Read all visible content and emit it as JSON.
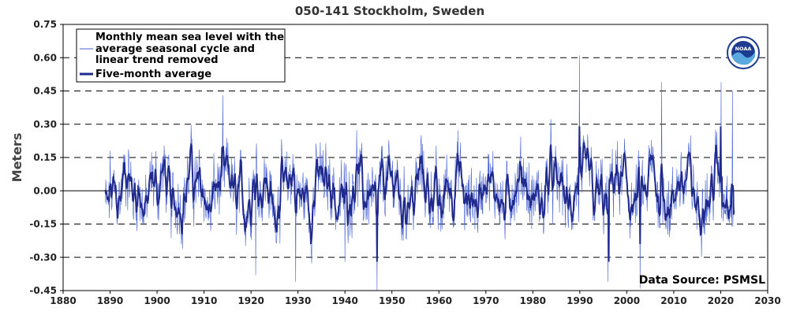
{
  "chart_data": {
    "type": "line",
    "title": "050-141 Stockholm, Sweden",
    "ylabel": "Meters",
    "xlabel": "",
    "xlim": [
      1880,
      2030
    ],
    "ylim": [
      -0.45,
      0.75
    ],
    "xticks": [
      "1880",
      "1890",
      "1900",
      "1910",
      "1920",
      "1930",
      "1940",
      "1950",
      "1960",
      "1970",
      "1980",
      "1990",
      "2000",
      "2010",
      "2020",
      "2030"
    ],
    "yticks": [
      "0.75",
      "0.60",
      "0.45",
      "0.30",
      "0.15",
      "0.00",
      "-0.15",
      "-0.30",
      "-0.45"
    ],
    "grid": "horizontal dashed",
    "legend_position": "top-left",
    "legend": {
      "monthly_label_lines": [
        "Monthly mean sea level with the",
        "average seasonal cycle and",
        "linear trend removed"
      ],
      "five_month_label": "Five-month average"
    },
    "series": [
      {
        "name": "Monthly mean sea level with the average seasonal cycle and linear trend removed",
        "color": "#4a63d3",
        "x_start": 1889.0,
        "x_end": 2022.9,
        "approx_range": [
          -0.45,
          0.61
        ],
        "notable_points": [
          {
            "x": 1890.0,
            "y": 0.18
          },
          {
            "x": 1914.0,
            "y": 0.43
          },
          {
            "x": 1921.0,
            "y": -0.38
          },
          {
            "x": 1929.5,
            "y": -0.41
          },
          {
            "x": 1940.0,
            "y": -0.32
          },
          {
            "x": 1946.8,
            "y": -0.45
          },
          {
            "x": 1989.9,
            "y": 0.61
          },
          {
            "x": 1996.0,
            "y": -0.41
          },
          {
            "x": 2002.8,
            "y": -0.44
          },
          {
            "x": 2007.4,
            "y": 0.49
          },
          {
            "x": 2020.1,
            "y": 0.49
          },
          {
            "x": 2022.5,
            "y": 0.45
          }
        ]
      },
      {
        "name": "Five-month average",
        "color": "#1f2a8c",
        "x_start": 1889.0,
        "x_end": 2022.9,
        "approx_range": [
          -0.33,
          0.29
        ],
        "notable_points": [
          {
            "x": 1946.8,
            "y": -0.32
          },
          {
            "x": 1989.9,
            "y": 0.29
          },
          {
            "x": 1996.2,
            "y": -0.32
          },
          {
            "x": 2002.8,
            "y": -0.24
          },
          {
            "x": 2020.0,
            "y": 0.29
          }
        ]
      }
    ],
    "data_source": "Data Source: PSMSL",
    "logo_text": "NOAA",
    "colors": {
      "monthly": "#4a63d3",
      "five_month": "#1f2a8c",
      "logo_blue": "#1d3c8f",
      "logo_light": "#5aa8e0"
    }
  }
}
